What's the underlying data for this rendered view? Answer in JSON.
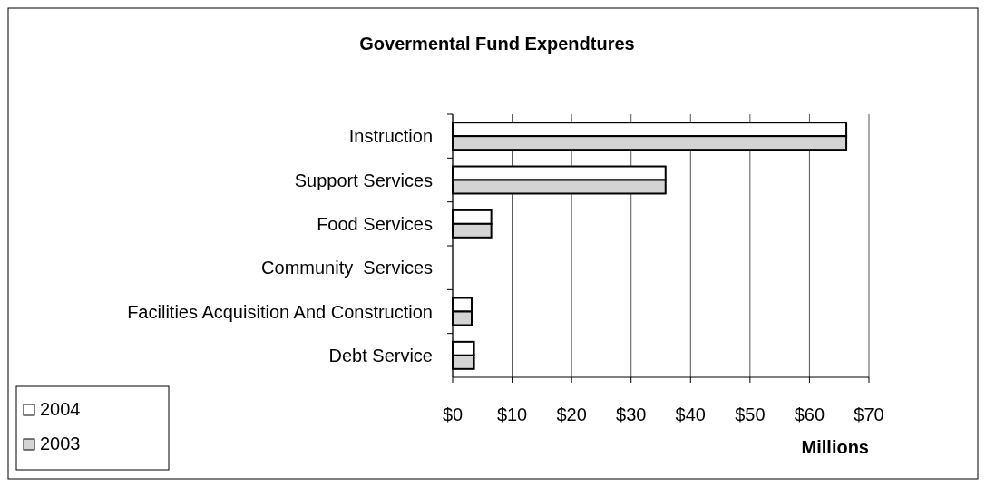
{
  "chart_data": {
    "type": "bar",
    "orientation": "horizontal",
    "title": "Govermental Fund Expendtures",
    "xlabel": "Millions",
    "categories": [
      "Instruction",
      "Support Services",
      "Food Services",
      "Community  Services",
      "Facilities Acquisition And Construction",
      "Debt Service"
    ],
    "series": [
      {
        "name": "2004",
        "color": "#ffffff",
        "values": [
          66.2,
          35.8,
          6.5,
          0,
          3.2,
          3.6
        ]
      },
      {
        "name": "2003",
        "color": "#d4d4d4",
        "values": [
          66.2,
          35.8,
          6.5,
          0,
          3.2,
          3.6
        ]
      }
    ],
    "xlim": [
      0,
      70
    ],
    "xticks": [
      {
        "value": 0,
        "label": "$0"
      },
      {
        "value": 10,
        "label": "$10"
      },
      {
        "value": 20,
        "label": "$20"
      },
      {
        "value": 30,
        "label": "$30"
      },
      {
        "value": 40,
        "label": "$40"
      },
      {
        "value": 50,
        "label": "$50"
      },
      {
        "value": 60,
        "label": "$60"
      },
      {
        "value": 70,
        "label": "$70"
      }
    ],
    "grid": "x",
    "legend": "bottom left"
  }
}
